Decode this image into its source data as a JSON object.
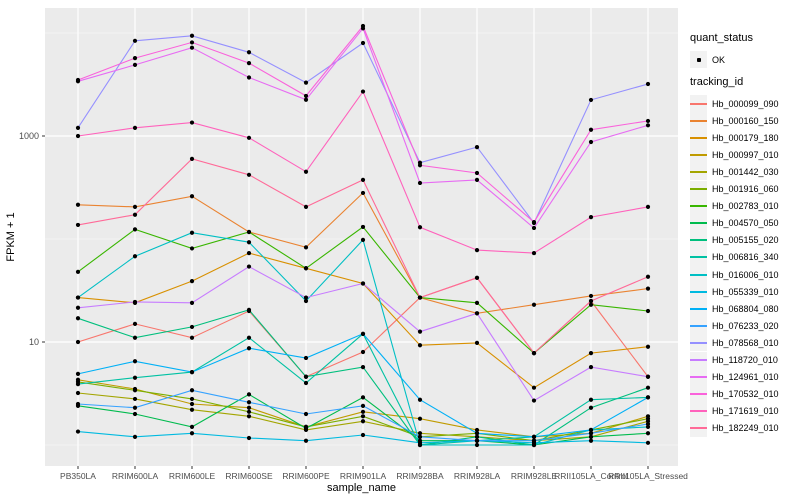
{
  "chart_data": {
    "type": "line",
    "title": "",
    "xlabel": "sample_name",
    "ylabel": "FPKM + 1",
    "yscale": "log10",
    "ylim": [
      1,
      18000
    ],
    "y_major_ticks": [
      10,
      1000
    ],
    "y_tick_labels": [
      "10",
      "1000"
    ],
    "y_minor_gridlines": [
      1,
      100,
      10000
    ],
    "grid": true,
    "panel_background": "#EBEBEB",
    "gridline_color": "#FFFFFF",
    "point_color": "#000000",
    "legend_position": "right",
    "categories": [
      "PB350LA",
      "RRIM600LA",
      "RRIM600LE",
      "RRIM600SE",
      "RRIM600PE",
      "RRIM901LA",
      "RRIM928BA",
      "RRIM928LA",
      "RRIM928LE",
      "RRII105LA_Control",
      "RRII105LA_Stressed"
    ],
    "series": [
      {
        "name": "Hb_000099_090",
        "color": "#F8766D",
        "values": [
          10,
          15,
          11,
          20,
          4.6,
          8,
          27,
          42,
          7.8,
          25,
          4.6
        ]
      },
      {
        "name": "Hb_000160_150",
        "color": "#EA8331",
        "values": [
          215,
          205,
          260,
          117,
          83,
          280,
          27,
          19,
          23,
          28,
          33
        ]
      },
      {
        "name": "Hb_000179_180",
        "color": "#D89000",
        "values": [
          27,
          24,
          39,
          73,
          52,
          37,
          9.3,
          9.8,
          3.6,
          7.8,
          9
        ]
      },
      {
        "name": "Hb_000997_010",
        "color": "#C09B00",
        "values": [
          4.3,
          3.5,
          2.5,
          2.3,
          1.5,
          2.1,
          1.8,
          1.4,
          1.2,
          1.3,
          1.9
        ]
      },
      {
        "name": "Hb_001442_030",
        "color": "#A3A500",
        "values": [
          3.2,
          2.8,
          2.2,
          1.9,
          1.4,
          1.7,
          1.3,
          1.2,
          1.1,
          1.2,
          1.7
        ]
      },
      {
        "name": "Hb_001916_060",
        "color": "#7CAE00",
        "values": [
          4.1,
          3.4,
          2.8,
          2.1,
          1.5,
          1.9,
          1.2,
          1.3,
          1.1,
          1.4,
          1.8
        ]
      },
      {
        "name": "Hb_002783_010",
        "color": "#39B600",
        "values": [
          48,
          124,
          81,
          117,
          52,
          131,
          27,
          24,
          7.8,
          23,
          20
        ]
      },
      {
        "name": "Hb_004570_050",
        "color": "#00BB4E",
        "values": [
          2.4,
          2.0,
          1.5,
          3.1,
          1.45,
          2.9,
          1.1,
          1.1,
          1.0,
          1.2,
          1.3
        ]
      },
      {
        "name": "Hb_005155_020",
        "color": "#00BF7D",
        "values": [
          17,
          11,
          14,
          20.5,
          4.6,
          5.7,
          1.0,
          1.2,
          1.0,
          2.3,
          3.6
        ]
      },
      {
        "name": "Hb_006816_340",
        "color": "#00C1A3",
        "values": [
          3.9,
          4.5,
          5.1,
          11,
          4.0,
          12,
          1.0,
          1.1,
          1.2,
          2.75,
          2.9
        ]
      },
      {
        "name": "Hb_016006_010",
        "color": "#00BFC4",
        "values": [
          27,
          68,
          115,
          93,
          25,
          98,
          1.0,
          1.0,
          1.0,
          1.4,
          1.5
        ]
      },
      {
        "name": "Hb_055339_010",
        "color": "#00BAE0",
        "values": [
          1.35,
          1.2,
          1.3,
          1.17,
          1.1,
          1.25,
          1.05,
          1.1,
          1.05,
          1.1,
          1.05
        ]
      },
      {
        "name": "Hb_068804_080",
        "color": "#00B0F6",
        "values": [
          4.9,
          6.5,
          5.1,
          8.7,
          7.0,
          12,
          2.75,
          1.3,
          1.2,
          1.4,
          2.9
        ]
      },
      {
        "name": "Hb_076233_020",
        "color": "#35A2FF",
        "values": [
          2.5,
          2.3,
          3.4,
          2.6,
          2.0,
          2.4,
          1.2,
          1.1,
          1.1,
          1.3,
          1.6
        ]
      },
      {
        "name": "Hb_078568_010",
        "color": "#9590FF",
        "values": [
          1200,
          8400,
          9400,
          6500,
          3300,
          8000,
          550,
          780,
          143,
          2240,
          3200
        ]
      },
      {
        "name": "Hb_118720_010",
        "color": "#C77CFF",
        "values": [
          21.5,
          24.5,
          24,
          54,
          27,
          37,
          12.6,
          19,
          2.7,
          5.7,
          4.6
        ]
      },
      {
        "name": "Hb_124961_010",
        "color": "#E76BF3",
        "values": [
          3400,
          4900,
          7200,
          3700,
          2250,
          11100,
          350,
          375,
          128,
          875,
          1270
        ]
      },
      {
        "name": "Hb_170532_010",
        "color": "#FA62DB",
        "values": [
          3500,
          5700,
          8100,
          5100,
          2450,
          11700,
          520,
          437,
          146,
          1150,
          1400
        ]
      },
      {
        "name": "Hb_171619_010",
        "color": "#FF62BC",
        "values": [
          1000,
          1200,
          1350,
          960,
          450,
          2700,
          130,
          78,
          73,
          163,
          205
        ]
      },
      {
        "name": "Hb_182249_010",
        "color": "#FF6A98",
        "values": [
          137,
          172,
          600,
          420,
          205,
          375,
          27,
          42,
          7.8,
          25,
          43
        ]
      }
    ],
    "legends": [
      {
        "title": "quant_status",
        "items": [
          {
            "label": "OK",
            "symbol": "point"
          }
        ]
      },
      {
        "title": "tracking_id"
      }
    ]
  },
  "axes": {
    "y_title": "FPKM + 1",
    "x_title": "sample_name"
  },
  "legend": {
    "quant_status_title": "quant_status",
    "quant_status_ok": "OK",
    "tracking_id_title": "tracking_id"
  }
}
